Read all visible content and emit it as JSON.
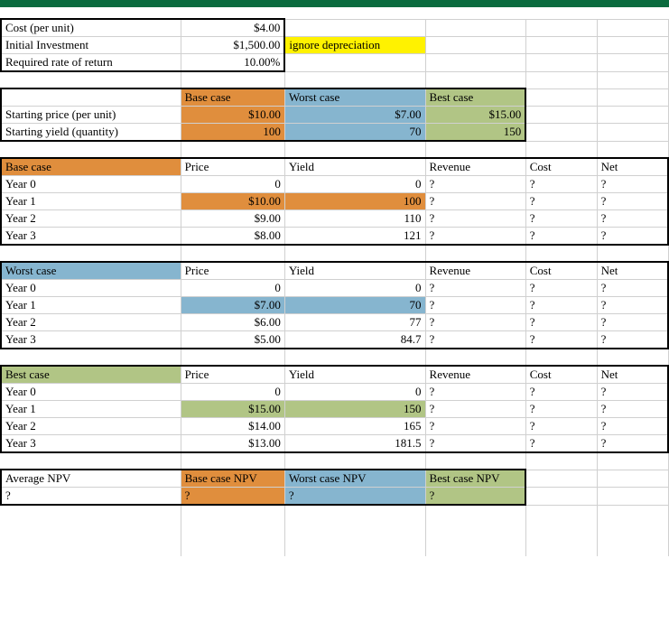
{
  "colors": {
    "orange": "#e08e3d",
    "blue": "#86b5cf",
    "green": "#b1c585",
    "yellow": "#fff200",
    "border_grid": "#d0d0d0",
    "border_thick": "#000000",
    "topbar": "#0a6b3e"
  },
  "inputs": {
    "cost_label": "Cost (per unit)",
    "cost_value": "$4.00",
    "invest_label": "Initial Investment",
    "invest_value": "$1,500.00",
    "invest_note": "ignore depreciation",
    "rate_label": "Required rate of return",
    "rate_value": "10.00%"
  },
  "scenario_header": {
    "base": "Base case",
    "worst": "Worst case",
    "best": "Best case"
  },
  "scenario_rows": {
    "price_label": "Starting price (per unit)",
    "yield_label": "Starting yield (quantity)",
    "base_price": "$10.00",
    "base_yield": "100",
    "worst_price": "$7.00",
    "worst_yield": "70",
    "best_price": "$15.00",
    "best_yield": "150"
  },
  "cols": {
    "price": "Price",
    "yield": "Yield",
    "revenue": "Revenue",
    "cost": "Cost",
    "net": "Net"
  },
  "years": {
    "y0": "Year 0",
    "y1": "Year 1",
    "y2": "Year 2",
    "y3": "Year 3"
  },
  "base": {
    "title": "Base case",
    "y0_price": "0",
    "y0_yield": "0",
    "y1_price": "$10.00",
    "y1_yield": "100",
    "y2_price": "$9.00",
    "y2_yield": "110",
    "y3_price": "$8.00",
    "y3_yield": "121"
  },
  "worst": {
    "title": "Worst case",
    "y0_price": "0",
    "y0_yield": "0",
    "y1_price": "$7.00",
    "y1_yield": "70",
    "y2_price": "$6.00",
    "y2_yield": "77",
    "y3_price": "$5.00",
    "y3_yield": "84.7"
  },
  "best": {
    "title": "Best case",
    "y0_price": "0",
    "y0_yield": "0",
    "y1_price": "$15.00",
    "y1_yield": "150",
    "y2_price": "$14.00",
    "y2_yield": "165",
    "y3_price": "$13.00",
    "y3_yield": "181.5"
  },
  "q": "?",
  "npv": {
    "label": "Average NPV",
    "base": "Base case NPV",
    "worst": "Worst case NPV",
    "best": "Best case NPV"
  }
}
